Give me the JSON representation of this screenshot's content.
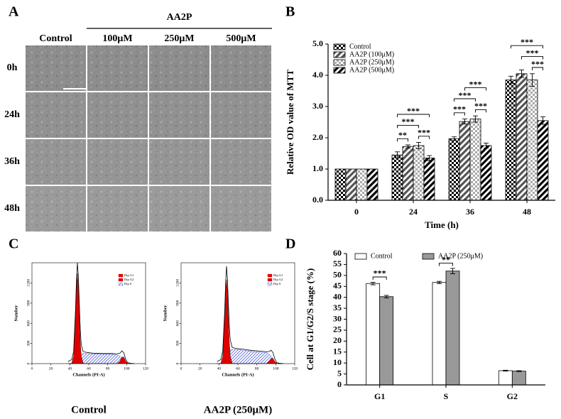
{
  "panel_labels": [
    "A",
    "B",
    "C",
    "D"
  ],
  "image_grid": {
    "group_label": "AA2P",
    "columns": [
      "Control",
      "100μM",
      "250μM",
      "500μM"
    ],
    "rows": [
      "0h",
      "24h",
      "36h",
      "48h"
    ]
  },
  "chart_data": [
    {
      "type": "bar",
      "ylabel": "Relative OD value of MTT",
      "xlabel": "Time (h)",
      "categories": [
        "0",
        "24",
        "36",
        "48"
      ],
      "series": [
        {
          "name": "Control",
          "color": "#000000",
          "pattern": "checker",
          "values": [
            1.0,
            1.45,
            1.97,
            3.85
          ],
          "errors": [
            0,
            0.1,
            0.06,
            0.12
          ]
        },
        {
          "name": "AA2P (100μM)",
          "color": "#555555",
          "pattern": "diagonal",
          "values": [
            1.0,
            1.72,
            2.52,
            4.05
          ],
          "errors": [
            0,
            0.05,
            0.08,
            0.12
          ]
        },
        {
          "name": "AA2P (250μM)",
          "color": "#aaaaaa",
          "pattern": "checker",
          "values": [
            1.0,
            1.75,
            2.6,
            3.85
          ],
          "errors": [
            0,
            0.1,
            0.1,
            0.2
          ]
        },
        {
          "name": "AA2P (500μM)",
          "color": "#000000",
          "pattern": "diagonal",
          "values": [
            1.0,
            1.35,
            1.75,
            2.55
          ],
          "errors": [
            0,
            0.08,
            0.08,
            0.12
          ]
        }
      ],
      "ylim": [
        0,
        5
      ],
      "yticks": [
        {
          "value": 0,
          "label": "0.0"
        },
        {
          "value": 1,
          "label": "1.0"
        },
        {
          "value": 2,
          "label": "2.0"
        },
        {
          "value": 3,
          "label": "3.0"
        },
        {
          "value": 4,
          "label": "4.0"
        },
        {
          "value": 5,
          "label": "5.0"
        }
      ],
      "legend": "upper left",
      "comparisons": [
        {
          "label": "**",
          "category": 1,
          "series": [
            0,
            1
          ]
        },
        {
          "label": "***",
          "category": 1,
          "series": [
            2,
            3
          ]
        },
        {
          "label": "***",
          "category": 1,
          "series": [
            0,
            2
          ]
        },
        {
          "label": "***",
          "category": 1,
          "series": [
            0,
            3
          ]
        },
        {
          "label": "***",
          "category": 2,
          "series": [
            0,
            1
          ]
        },
        {
          "label": "***",
          "category": 2,
          "series": [
            2,
            3
          ]
        },
        {
          "label": "***",
          "category": 2,
          "series": [
            0,
            2
          ]
        },
        {
          "label": "***",
          "category": 2,
          "series": [
            1,
            3
          ]
        },
        {
          "label": "***",
          "category": 3,
          "series": [
            2,
            3
          ]
        },
        {
          "label": "***",
          "category": 3,
          "series": [
            1,
            3
          ]
        },
        {
          "label": "***",
          "category": 3,
          "series": [
            0,
            3
          ]
        }
      ]
    },
    {
      "type": "area",
      "caption": "Control",
      "xlabel": "Channels (PI-A)",
      "ylabel": "Number",
      "x": [
        38,
        42,
        44,
        46,
        47,
        48,
        49,
        50,
        51,
        52,
        54,
        58,
        65,
        75,
        85,
        90,
        93,
        95,
        97,
        99,
        101,
        104,
        108
      ],
      "series": [
        {
          "name": "Dip G1",
          "color": "#e00000",
          "filled": true,
          "values": [
            0,
            5,
            114,
            724,
            1148,
            1340,
            1148,
            724,
            335,
            114,
            5,
            0,
            0,
            0,
            0,
            0,
            0,
            0,
            0,
            0,
            0,
            0,
            0
          ]
        },
        {
          "name": "Dip G2",
          "color": "#e00000",
          "filled": true,
          "values": [
            0,
            0,
            0,
            0,
            0,
            0,
            0,
            0,
            0,
            0,
            0,
            0,
            0,
            0,
            0,
            1,
            36,
            97,
            97,
            36,
            5,
            0,
            0
          ]
        },
        {
          "name": "Dip S",
          "color": "#3344cc",
          "filled": true,
          "pattern": "hatch",
          "values": [
            0,
            0,
            0,
            20,
            40,
            60,
            90,
            110,
            130,
            140,
            150,
            150,
            145,
            140,
            140,
            130,
            110,
            80,
            50,
            20,
            0,
            0,
            0
          ]
        },
        {
          "color": "#000000",
          "filled": false,
          "values": [
            30,
            60,
            180,
            800,
            1250,
            1500,
            1300,
            900,
            520,
            290,
            180,
            165,
            155,
            150,
            150,
            145,
            155,
            190,
            160,
            65,
            15,
            5,
            0
          ]
        }
      ],
      "xlim": [
        0,
        120
      ],
      "xticks": [
        0,
        20,
        40,
        60,
        80,
        100,
        120
      ],
      "ylim": [
        0,
        1500
      ],
      "yticks": [
        0,
        300,
        600,
        900,
        1200
      ],
      "legend": "upper right"
    },
    {
      "type": "area",
      "caption": "AA2P (250μM)",
      "xlabel": "Channels (PI-A)",
      "ylabel": "Number",
      "x": [
        38,
        42,
        44,
        46,
        47,
        48,
        49,
        50,
        51,
        52,
        54,
        58,
        65,
        75,
        85,
        90,
        93,
        95,
        97,
        99,
        101,
        104,
        108
      ],
      "series": [
        {
          "name": "Dip G1",
          "color": "#e00000",
          "filled": true,
          "values": [
            0,
            5,
            106,
            675,
            1071,
            1250,
            1071,
            675,
            312,
            106,
            5,
            0,
            0,
            0,
            0,
            0,
            0,
            0,
            0,
            0,
            0,
            0,
            0
          ]
        },
        {
          "name": "Dip G2",
          "color": "#e00000",
          "filled": true,
          "values": [
            0,
            0,
            0,
            0,
            0,
            0,
            0,
            0,
            0,
            0,
            0,
            0,
            0,
            0,
            0,
            1,
            29,
            79,
            79,
            29,
            4,
            0,
            0
          ]
        },
        {
          "name": "Dip S",
          "color": "#3344cc",
          "filled": true,
          "pattern": "hatch",
          "values": [
            0,
            0,
            0,
            30,
            60,
            90,
            130,
            160,
            190,
            200,
            210,
            210,
            200,
            180,
            170,
            160,
            140,
            110,
            70,
            30,
            5,
            0,
            0
          ]
        },
        {
          "color": "#000000",
          "filled": false,
          "values": [
            30,
            60,
            190,
            760,
            1180,
            1450,
            1250,
            880,
            540,
            350,
            240,
            225,
            215,
            195,
            185,
            175,
            180,
            200,
            165,
            72,
            15,
            5,
            0
          ]
        }
      ],
      "xlim": [
        0,
        120
      ],
      "xticks": [
        0,
        20,
        40,
        60,
        80,
        100,
        120
      ],
      "ylim": [
        0,
        1500
      ],
      "yticks": [
        0,
        300,
        600,
        900,
        1200
      ],
      "legend": "upper right"
    },
    {
      "type": "bar",
      "ylabel": "Cell at G1/G2/S stage (%)",
      "categories": [
        "G1",
        "S",
        "G2"
      ],
      "series": [
        {
          "name": "Control",
          "color": "#ffffff",
          "values": [
            46.3,
            46.8,
            6.5
          ],
          "errors": [
            0.6,
            0.5,
            0.2
          ]
        },
        {
          "name": "AA2P (250μM)",
          "color": "#999999",
          "values": [
            40.3,
            52.0,
            6.3
          ],
          "errors": [
            0.6,
            1.2,
            0.2
          ]
        }
      ],
      "ylim": [
        0,
        60
      ],
      "yticks": [
        0,
        5,
        10,
        15,
        20,
        25,
        30,
        35,
        40,
        45,
        50,
        55,
        60
      ],
      "legend": "upper center",
      "comparisons": [
        {
          "label": "***",
          "category": 0,
          "series": [
            0,
            1
          ]
        },
        {
          "label": "**",
          "category": 1,
          "series": [
            0,
            1
          ]
        }
      ]
    }
  ]
}
